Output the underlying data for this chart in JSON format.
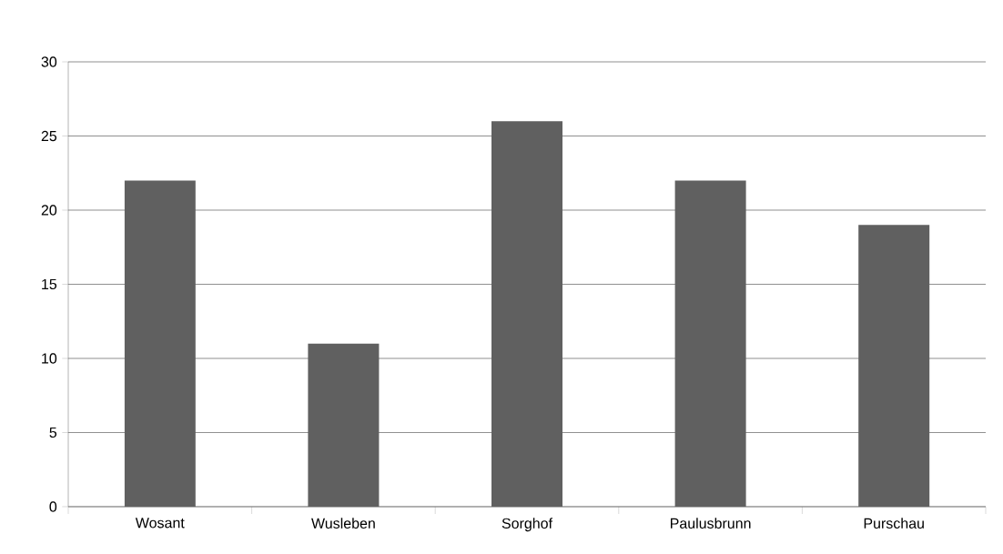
{
  "chart_data": {
    "type": "bar",
    "categories": [
      "Wosant",
      "Wusleben",
      "Sorghof",
      "Paulusbrunn",
      "Purschau"
    ],
    "values": [
      22,
      11,
      26,
      22,
      19
    ],
    "color": "#606060",
    "ylim": [
      0,
      30
    ],
    "yticks": [
      0,
      5,
      10,
      15,
      20,
      25,
      30
    ],
    "grid": "y"
  }
}
